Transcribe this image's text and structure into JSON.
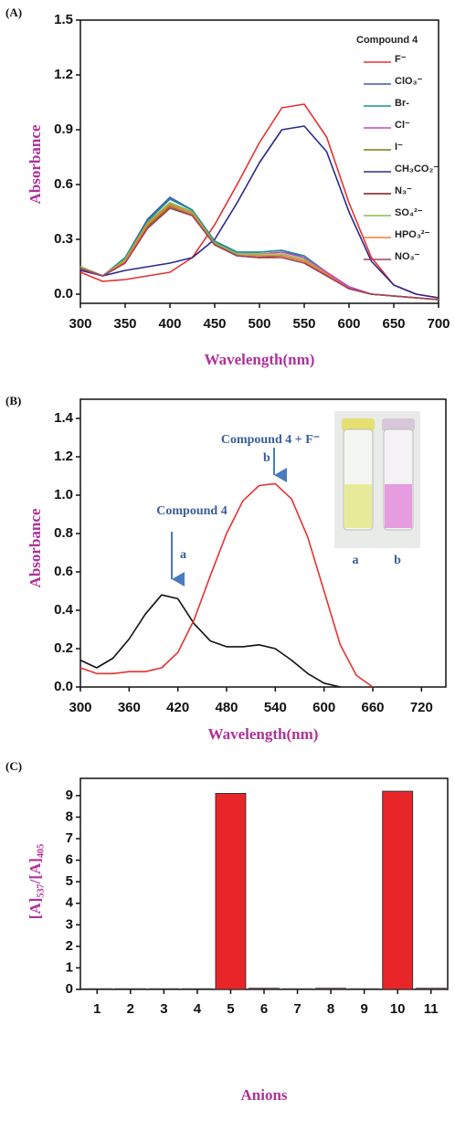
{
  "chart_data": [
    {
      "type": "line",
      "panel": "(A)",
      "xlabel": "Wavelength(nm)",
      "ylabel": "Absorbance",
      "legend_title": "Compound 4",
      "legend": "upper right",
      "xlim": [
        300,
        700
      ],
      "xticks": [
        300,
        350,
        400,
        450,
        500,
        550,
        600,
        650,
        700
      ],
      "ylim": [
        -0.05,
        1.5
      ],
      "yticks": [
        {
          "value": 0,
          "label": "0.0"
        },
        0.3,
        0.6,
        0.9,
        1.2,
        1.5
      ],
      "x": [
        300,
        325,
        350,
        375,
        400,
        425,
        450,
        475,
        500,
        525,
        550,
        575,
        600,
        625,
        650,
        675,
        700
      ],
      "series": [
        {
          "name": "F⁻",
          "color": "#e8312f",
          "values": [
            0.12,
            0.07,
            0.08,
            0.1,
            0.12,
            0.2,
            0.38,
            0.6,
            0.83,
            1.02,
            1.04,
            0.86,
            0.5,
            0.2,
            0.05,
            0.0,
            -0.02
          ]
        },
        {
          "name": "ClO₃⁻",
          "color": "#4455bb",
          "values": [
            0.15,
            0.1,
            0.2,
            0.41,
            0.53,
            0.46,
            0.29,
            0.23,
            0.23,
            0.24,
            0.2,
            0.12,
            0.04,
            0.0,
            -0.01,
            -0.02,
            -0.03
          ]
        },
        {
          "name": "Br-",
          "color": "#1a8f8f",
          "values": [
            0.15,
            0.1,
            0.2,
            0.4,
            0.52,
            0.46,
            0.29,
            0.23,
            0.23,
            0.24,
            0.21,
            0.12,
            0.04,
            0.0,
            -0.01,
            -0.02,
            -0.03
          ]
        },
        {
          "name": "Cl⁻",
          "color": "#cc44cc",
          "values": [
            0.15,
            0.1,
            0.19,
            0.39,
            0.5,
            0.45,
            0.28,
            0.22,
            0.22,
            0.23,
            0.2,
            0.12,
            0.04,
            0.0,
            -0.01,
            -0.02,
            -0.03
          ]
        },
        {
          "name": "I⁻",
          "color": "#7a7a1a",
          "values": [
            0.14,
            0.1,
            0.18,
            0.37,
            0.48,
            0.43,
            0.27,
            0.21,
            0.21,
            0.21,
            0.18,
            0.11,
            0.03,
            0.0,
            -0.01,
            -0.02,
            -0.03
          ]
        },
        {
          "name": "CH₃CO₂⁻",
          "color": "#2a2a8a",
          "values": [
            0.13,
            0.1,
            0.13,
            0.15,
            0.17,
            0.2,
            0.3,
            0.5,
            0.72,
            0.9,
            0.92,
            0.78,
            0.45,
            0.18,
            0.05,
            0.0,
            -0.02
          ]
        },
        {
          "name": "N₃⁻",
          "color": "#7a1a1a",
          "values": [
            0.14,
            0.1,
            0.18,
            0.38,
            0.49,
            0.44,
            0.27,
            0.21,
            0.2,
            0.21,
            0.18,
            0.11,
            0.03,
            0.0,
            -0.01,
            -0.02,
            -0.03
          ]
        },
        {
          "name": "SO₄²⁻",
          "color": "#88bb44",
          "values": [
            0.15,
            0.1,
            0.19,
            0.39,
            0.5,
            0.45,
            0.28,
            0.22,
            0.22,
            0.22,
            0.19,
            0.11,
            0.03,
            0.0,
            -0.01,
            -0.02,
            -0.03
          ]
        },
        {
          "name": "HPO₃²⁻",
          "color": "#f07f30",
          "values": [
            0.14,
            0.1,
            0.18,
            0.38,
            0.49,
            0.44,
            0.27,
            0.21,
            0.21,
            0.21,
            0.18,
            0.11,
            0.03,
            0.0,
            -0.01,
            -0.02,
            -0.03
          ]
        },
        {
          "name": "NO₃⁻",
          "color": "#a04060",
          "values": [
            0.14,
            0.1,
            0.17,
            0.36,
            0.47,
            0.43,
            0.27,
            0.21,
            0.2,
            0.2,
            0.17,
            0.1,
            0.03,
            0.0,
            -0.01,
            -0.02,
            -0.03
          ]
        }
      ]
    },
    {
      "type": "line",
      "panel": "(B)",
      "xlabel": "Wavelength(nm)",
      "ylabel": "Absorbance",
      "xlim": [
        300,
        750
      ],
      "xticks": [
        300,
        360,
        420,
        480,
        540,
        600,
        660,
        720
      ],
      "ylim": [
        0,
        1.5
      ],
      "yticks": [
        {
          "value": 0,
          "label": "0.0"
        },
        0.2,
        0.4,
        0.6,
        0.8,
        {
          "value": 1,
          "label": "1.0"
        },
        1.2,
        1.4
      ],
      "x": [
        300,
        320,
        340,
        360,
        380,
        400,
        420,
        440,
        460,
        480,
        500,
        520,
        540,
        560,
        580,
        600,
        620,
        640,
        660
      ],
      "series": [
        {
          "name": "Compound 4",
          "color": "#111111",
          "marker": "a",
          "values": [
            0.14,
            0.1,
            0.15,
            0.25,
            0.38,
            0.48,
            0.46,
            0.33,
            0.24,
            0.21,
            0.21,
            0.22,
            0.2,
            0.14,
            0.07,
            0.02,
            0.0,
            null,
            null
          ]
        },
        {
          "name": "Compound 4 + F⁻",
          "color": "#e8312f",
          "marker": "b",
          "values": [
            0.1,
            0.07,
            0.07,
            0.08,
            0.08,
            0.1,
            0.18,
            0.35,
            0.58,
            0.8,
            0.97,
            1.05,
            1.06,
            0.98,
            0.78,
            0.5,
            0.22,
            0.06,
            0.0
          ]
        }
      ],
      "inset_labels": [
        "a",
        "b"
      ]
    },
    {
      "type": "bar",
      "panel": "(C)",
      "xlabel": "Anions",
      "ylabel": "[A]₅₃₇/[A]₄₀₅",
      "color": "#e8262a",
      "categories": [
        "1",
        "2",
        "3",
        "4",
        "5",
        "6",
        "7",
        "8",
        "9",
        "10",
        "11"
      ],
      "values": [
        0.03,
        0.03,
        0.03,
        0.03,
        9.1,
        0.05,
        0.03,
        0.05,
        0.03,
        9.2,
        0.05
      ],
      "ylim": [
        0,
        9.8
      ],
      "yticks": [
        0,
        1,
        2,
        3,
        4,
        5,
        6,
        7,
        8,
        9
      ]
    }
  ]
}
